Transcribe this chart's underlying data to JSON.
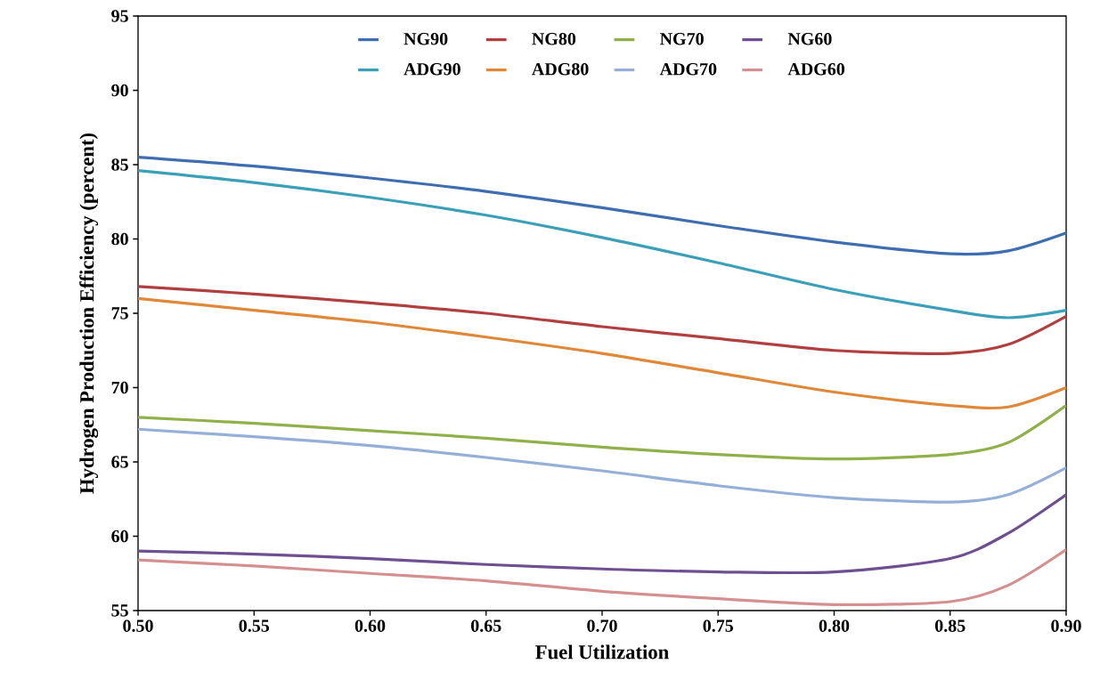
{
  "chart_data": {
    "type": "line",
    "xlabel": "Fuel Utilization",
    "ylabel": "Hydrogen Production Efficiency (percent)",
    "x": [
      0.5,
      0.55,
      0.6,
      0.65,
      0.7,
      0.75,
      0.8,
      0.85,
      0.875,
      0.9
    ],
    "xlim": [
      0.5,
      0.9
    ],
    "ylim": [
      55,
      95
    ],
    "xticks": [
      {
        "value": 0.5,
        "label": "0.50"
      },
      0.55,
      {
        "value": 0.6,
        "label": "0.60"
      },
      0.65,
      {
        "value": 0.7,
        "label": "0.70"
      },
      0.75,
      {
        "value": 0.8,
        "label": "0.80"
      },
      0.85,
      {
        "value": 0.9,
        "label": "0.90"
      }
    ],
    "yticks": [
      55,
      60,
      65,
      70,
      75,
      80,
      85,
      90,
      95
    ],
    "legend": "top",
    "marker": "none",
    "line_style": "solid",
    "series": [
      {
        "name": "NG90",
        "color": "#3e6eb0",
        "values": [
          85.5,
          84.9,
          84.1,
          83.2,
          82.1,
          80.9,
          79.8,
          79.0,
          79.2,
          80.4
        ]
      },
      {
        "name": "NG80",
        "color": "#b04040",
        "values": [
          76.8,
          76.3,
          75.7,
          75.0,
          74.1,
          73.3,
          72.5,
          72.3,
          72.9,
          74.8
        ]
      },
      {
        "name": "NG70",
        "color": "#8fb04a",
        "values": [
          68.0,
          67.6,
          67.1,
          66.6,
          66.0,
          65.5,
          65.2,
          65.5,
          66.3,
          68.8
        ]
      },
      {
        "name": "NG60",
        "color": "#6e4f8f",
        "values": [
          59.0,
          58.8,
          58.5,
          58.1,
          57.8,
          57.6,
          57.6,
          58.5,
          60.2,
          62.8
        ]
      },
      {
        "name": "ADG90",
        "color": "#3b9fb8",
        "values": [
          84.6,
          83.8,
          82.8,
          81.6,
          80.1,
          78.4,
          76.6,
          75.2,
          74.7,
          75.2
        ]
      },
      {
        "name": "ADG80",
        "color": "#e0883a",
        "values": [
          76.0,
          75.2,
          74.4,
          73.4,
          72.3,
          71.0,
          69.7,
          68.8,
          68.7,
          70.0
        ]
      },
      {
        "name": "ADG70",
        "color": "#95b0d8",
        "values": [
          67.2,
          66.7,
          66.1,
          65.3,
          64.4,
          63.4,
          62.6,
          62.3,
          62.8,
          64.6
        ]
      },
      {
        "name": "ADG60",
        "color": "#d49090",
        "values": [
          58.4,
          58.0,
          57.5,
          57.0,
          56.3,
          55.8,
          55.4,
          55.6,
          56.7,
          59.1
        ]
      }
    ]
  }
}
